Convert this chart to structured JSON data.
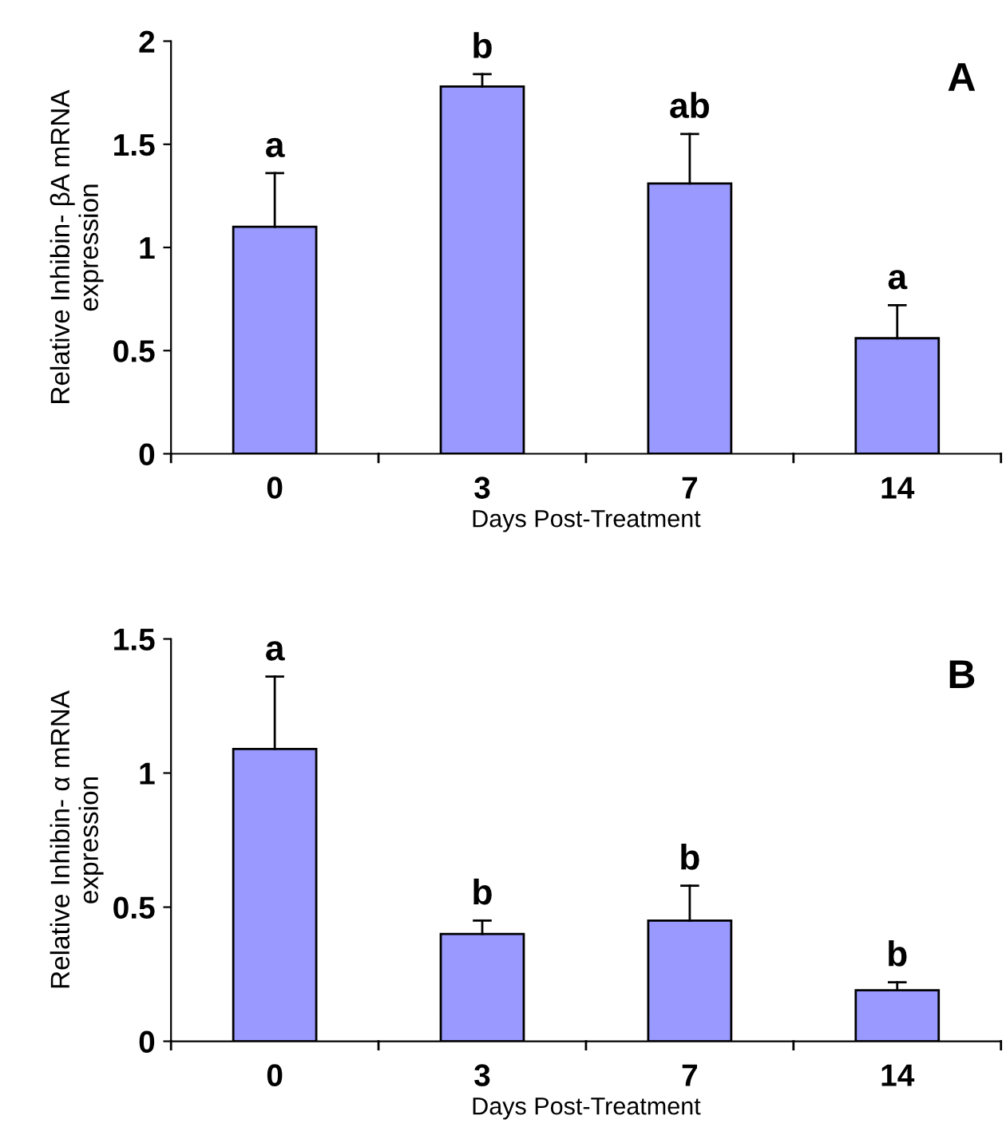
{
  "chart_data": [
    {
      "type": "bar",
      "categories": [
        "0",
        "3",
        "7",
        "14"
      ],
      "values": [
        1.1,
        1.78,
        1.31,
        0.56
      ],
      "color": "#9999ff",
      "errors": [
        [
          1.1,
          1.36
        ],
        [
          1.78,
          1.84
        ],
        [
          1.31,
          1.55
        ],
        [
          0.56,
          0.72
        ]
      ],
      "ylim": [
        0,
        2
      ],
      "yticks": [
        0,
        0.5,
        1,
        1.5,
        2
      ],
      "xlabel": "Days Post-Treatment",
      "ylabel": "Relative Inhibin- βA mRNA\nexpression",
      "grid": false,
      "annotations": [
        "A",
        {
          "text": "a",
          "x": "0",
          "y": 1.36
        },
        {
          "text": "b",
          "x": "3",
          "y": 1.84
        },
        {
          "text": "ab",
          "x": "7",
          "y": 1.55
        },
        {
          "text": "a",
          "x": "14",
          "y": 0.72
        }
      ]
    },
    {
      "type": "bar",
      "categories": [
        "0",
        "3",
        "7",
        "14"
      ],
      "values": [
        1.09,
        0.4,
        0.45,
        0.19
      ],
      "color": "#9999ff",
      "errors": [
        [
          1.09,
          1.36
        ],
        [
          0.4,
          0.45
        ],
        [
          0.45,
          0.58
        ],
        [
          0.19,
          0.22
        ]
      ],
      "ylim": [
        0,
        1.5
      ],
      "yticks": [
        0,
        0.5,
        1,
        1.5
      ],
      "xlabel": "Days Post-Treatment",
      "ylabel": "Relative Inhibin- α mRNA\nexpression",
      "grid": false,
      "annotations": [
        "B",
        {
          "text": "a",
          "x": "0",
          "y": 1.36
        },
        {
          "text": "b",
          "x": "3",
          "y": 0.45
        },
        {
          "text": "b",
          "x": "7",
          "y": 0.58
        },
        {
          "text": "b",
          "x": "14",
          "y": 0.22
        }
      ]
    }
  ]
}
